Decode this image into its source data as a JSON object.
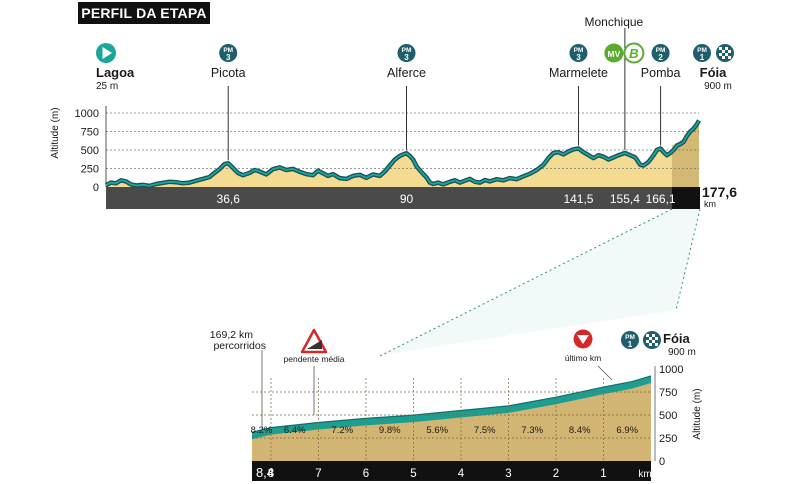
{
  "header": {
    "title": "PERFIL DA ETAPA"
  },
  "colors": {
    "profile_fill": "#f3dc92",
    "profile_line": "#1f4f57",
    "profile_line_accent": "#19a79e",
    "finale_fill": "#d2b572",
    "finale_line": "#1e9e91",
    "finale_top": "#0f6f69",
    "bar_dark": "#4a4a4a",
    "bar_black": "#111111",
    "start_icon": "#1aa79b",
    "kom_badge": "#1f5e6c",
    "mv_badge": "#5aab2e",
    "bonus_badge": "#ffffff",
    "gradient_warning": "#d62828"
  },
  "icons": {
    "start": "play-triangle-icon",
    "finish": "checkered-flag-icon",
    "gradient": "warning-triangle-icon",
    "last_km": "down-arrow-circle-icon"
  },
  "chart_data": [
    {
      "type": "area",
      "ylabel": "Altitude (m)",
      "xlabel": "km",
      "ylim": [
        0,
        1000
      ],
      "y_ticks": [
        "0",
        "250",
        "500",
        "750",
        "1000"
      ],
      "xlim": [
        0,
        177.6
      ],
      "x_ticks": [
        {
          "x": 36.6,
          "label": "36,6"
        },
        {
          "x": 90,
          "label": "90"
        },
        {
          "x": 141.5,
          "label": "141,5"
        },
        {
          "x": 155.4,
          "label": "155,4"
        },
        {
          "x": 166.1,
          "label": "166,1"
        }
      ],
      "total": {
        "value": "177,6",
        "unit": "km"
      },
      "profile": [
        [
          0,
          25
        ],
        [
          1.5,
          60
        ],
        [
          3,
          50
        ],
        [
          4.5,
          90
        ],
        [
          6,
          75
        ],
        [
          7.5,
          35
        ],
        [
          9,
          20
        ],
        [
          11,
          30
        ],
        [
          13,
          15
        ],
        [
          15,
          40
        ],
        [
          17,
          55
        ],
        [
          19,
          70
        ],
        [
          21,
          65
        ],
        [
          23,
          50
        ],
        [
          25,
          60
        ],
        [
          27,
          85
        ],
        [
          29,
          110
        ],
        [
          31,
          135
        ],
        [
          32.5,
          190
        ],
        [
          34,
          240
        ],
        [
          35.5,
          310
        ],
        [
          36.6,
          320
        ],
        [
          38,
          260
        ],
        [
          39.5,
          190
        ],
        [
          41,
          160
        ],
        [
          43,
          190
        ],
        [
          44.5,
          230
        ],
        [
          46,
          210
        ],
        [
          48,
          170
        ],
        [
          50,
          240
        ],
        [
          52,
          265
        ],
        [
          54,
          230
        ],
        [
          56,
          245
        ],
        [
          58,
          205
        ],
        [
          60,
          175
        ],
        [
          62,
          160
        ],
        [
          63.5,
          220
        ],
        [
          65,
          185
        ],
        [
          66.5,
          150
        ],
        [
          68,
          175
        ],
        [
          70,
          120
        ],
        [
          72,
          110
        ],
        [
          74,
          150
        ],
        [
          76,
          165
        ],
        [
          78,
          125
        ],
        [
          80,
          170
        ],
        [
          82,
          150
        ],
        [
          83.5,
          210
        ],
        [
          85,
          290
        ],
        [
          86.5,
          370
        ],
        [
          88,
          420
        ],
        [
          89,
          440
        ],
        [
          90,
          455
        ],
        [
          91,
          420
        ],
        [
          92,
          370
        ],
        [
          93,
          280
        ],
        [
          94.5,
          200
        ],
        [
          96,
          130
        ],
        [
          97,
          60
        ],
        [
          98,
          40
        ],
        [
          99.5,
          60
        ],
        [
          101,
          35
        ],
        [
          103,
          70
        ],
        [
          104.5,
          90
        ],
        [
          106,
          60
        ],
        [
          107.5,
          85
        ],
        [
          109,
          110
        ],
        [
          110.5,
          70
        ],
        [
          112,
          60
        ],
        [
          113.5,
          95
        ],
        [
          115,
          75
        ],
        [
          117,
          105
        ],
        [
          119,
          90
        ],
        [
          121,
          120
        ],
        [
          123,
          105
        ],
        [
          125,
          145
        ],
        [
          127,
          180
        ],
        [
          129,
          230
        ],
        [
          131,
          300
        ],
        [
          132.5,
          390
        ],
        [
          134,
          460
        ],
        [
          135.5,
          470
        ],
        [
          137,
          440
        ],
        [
          138.5,
          480
        ],
        [
          140,
          510
        ],
        [
          141.5,
          520
        ],
        [
          143,
          470
        ],
        [
          144.5,
          430
        ],
        [
          146,
          390
        ],
        [
          147.5,
          430
        ],
        [
          149,
          410
        ],
        [
          150.5,
          370
        ],
        [
          152,
          400
        ],
        [
          153.5,
          430
        ],
        [
          155.4,
          460
        ],
        [
          157,
          430
        ],
        [
          158.5,
          400
        ],
        [
          160,
          300
        ],
        [
          161,
          290
        ],
        [
          162.5,
          340
        ],
        [
          164,
          430
        ],
        [
          165,
          500
        ],
        [
          166.1,
          520
        ],
        [
          167,
          470
        ],
        [
          168,
          430
        ],
        [
          169,
          460
        ],
        [
          170,
          500
        ],
        [
          171,
          560
        ],
        [
          172,
          580
        ],
        [
          173,
          610
        ],
        [
          174,
          690
        ],
        [
          175,
          750
        ],
        [
          176,
          790
        ],
        [
          177,
          850
        ],
        [
          177.6,
          900
        ]
      ],
      "places": [
        {
          "km": 0,
          "name": "Lagoa",
          "altitude": "25 m",
          "badges": [
            "start"
          ]
        },
        {
          "km": 36.6,
          "name": "Picota",
          "badges": [
            "PM3"
          ]
        },
        {
          "km": 90,
          "name": "Alferce",
          "badges": [
            "PM3"
          ]
        },
        {
          "km": 141.5,
          "name": "Marmelete",
          "badges": [
            "PM3"
          ]
        },
        {
          "km": 155.4,
          "name": "Monchique",
          "badges": [
            "MV",
            "B"
          ]
        },
        {
          "km": 166.1,
          "name": "Pomba",
          "badges": [
            "PM2"
          ]
        },
        {
          "km": 177.6,
          "name": "Fóia",
          "altitude": "900 m",
          "badges": [
            "PM1",
            "finish"
          ]
        }
      ],
      "badge_text": {
        "PM3": [
          "PM",
          "3"
        ],
        "PM2": [
          "PM",
          "2"
        ],
        "PM1": [
          "PM",
          "1"
        ],
        "MV": "MV",
        "B": "B"
      }
    },
    {
      "type": "area",
      "title": "",
      "ylabel": "Altitude (m)",
      "ylim": [
        0,
        1000
      ],
      "y_ticks": [
        "0",
        "250",
        "500",
        "750",
        "1000"
      ],
      "xlim": [
        8.4,
        0
      ],
      "x_ticks": [
        "8,4",
        "8",
        "7",
        "6",
        "5",
        "4",
        "3",
        "2",
        "1"
      ],
      "x_unit": "km",
      "start_note": [
        "169,2 km",
        "percorridos"
      ],
      "avg_gradient_label": "pendente média",
      "last_km_label": "último km",
      "finish": {
        "name": "Fóia",
        "altitude": "900 m",
        "badges": [
          "PM1",
          "finish"
        ]
      },
      "segments": [
        {
          "from": 8.4,
          "to": 8,
          "gradient": "8.2%"
        },
        {
          "from": 8,
          "to": 7,
          "gradient": "6.4%"
        },
        {
          "from": 7,
          "to": 6,
          "gradient": "7.2%"
        },
        {
          "from": 6,
          "to": 5,
          "gradient": "9.8%"
        },
        {
          "from": 5,
          "to": 4,
          "gradient": "5.6%"
        },
        {
          "from": 4,
          "to": 3,
          "gradient": "7.5%"
        },
        {
          "from": 3,
          "to": 2,
          "gradient": "7.3%"
        },
        {
          "from": 2,
          "to": 1,
          "gradient": "8.4%"
        },
        {
          "from": 1,
          "to": 0,
          "gradient": "6.9%"
        }
      ],
      "profile": [
        [
          8.4,
          270
        ],
        [
          8,
          320
        ],
        [
          7,
          375
        ],
        [
          6,
          420
        ],
        [
          5,
          455
        ],
        [
          4,
          505
        ],
        [
          3,
          555
        ],
        [
          2,
          650
        ],
        [
          1,
          760
        ],
        [
          0.4,
          820
        ],
        [
          0,
          880
        ]
      ]
    }
  ]
}
